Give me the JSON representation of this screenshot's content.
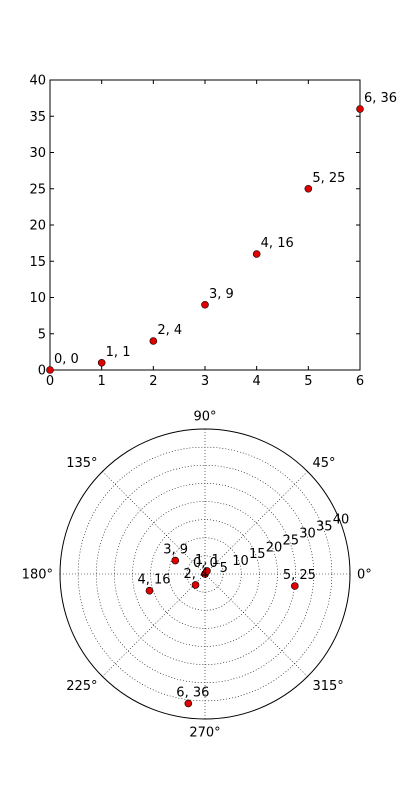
{
  "chart_data": [
    {
      "type": "scatter",
      "x": [
        0,
        1,
        2,
        3,
        4,
        5,
        6
      ],
      "y": [
        0,
        1,
        4,
        9,
        16,
        25,
        36
      ],
      "point_labels": [
        "0, 0",
        "1, 1",
        "2, 4",
        "3, 9",
        "4, 16",
        "5, 25",
        "6, 36"
      ],
      "xlim": [
        0,
        6
      ],
      "ylim": [
        0,
        40
      ],
      "x_ticks": [
        0,
        1,
        2,
        3,
        4,
        5,
        6
      ],
      "x_tick_labels": [
        "0",
        "1",
        "2",
        "3",
        "4",
        "5",
        "6"
      ],
      "y_ticks": [
        0,
        5,
        10,
        15,
        20,
        25,
        30,
        35,
        40
      ],
      "y_tick_labels": [
        "0",
        "5",
        "10",
        "15",
        "20",
        "25",
        "30",
        "35",
        "40"
      ],
      "grid": false,
      "marker_color": "#e00000"
    },
    {
      "type": "scatter",
      "projection": "polar",
      "theta": [
        0,
        1,
        4,
        9,
        16,
        25,
        36
      ],
      "r": [
        0,
        1,
        4,
        9,
        16,
        25,
        36
      ],
      "point_labels": [
        "0, 0",
        "1, 1",
        "2, 4",
        "3, 9",
        "4, 16",
        "5, 25",
        "6, 36"
      ],
      "rlim": [
        0,
        40
      ],
      "r_ticks": [
        5,
        10,
        15,
        20,
        25,
        30,
        35,
        40
      ],
      "r_tick_labels": [
        "5",
        "10",
        "15",
        "20",
        "25",
        "30",
        "35",
        "40"
      ],
      "theta_ticks_deg": [
        0,
        45,
        90,
        135,
        180,
        225,
        270,
        315
      ],
      "theta_tick_labels": [
        "0°",
        "45°",
        "90°",
        "135°",
        "180°",
        "225°",
        "270°",
        "315°"
      ],
      "grid": true,
      "marker_color": "#e00000"
    }
  ]
}
